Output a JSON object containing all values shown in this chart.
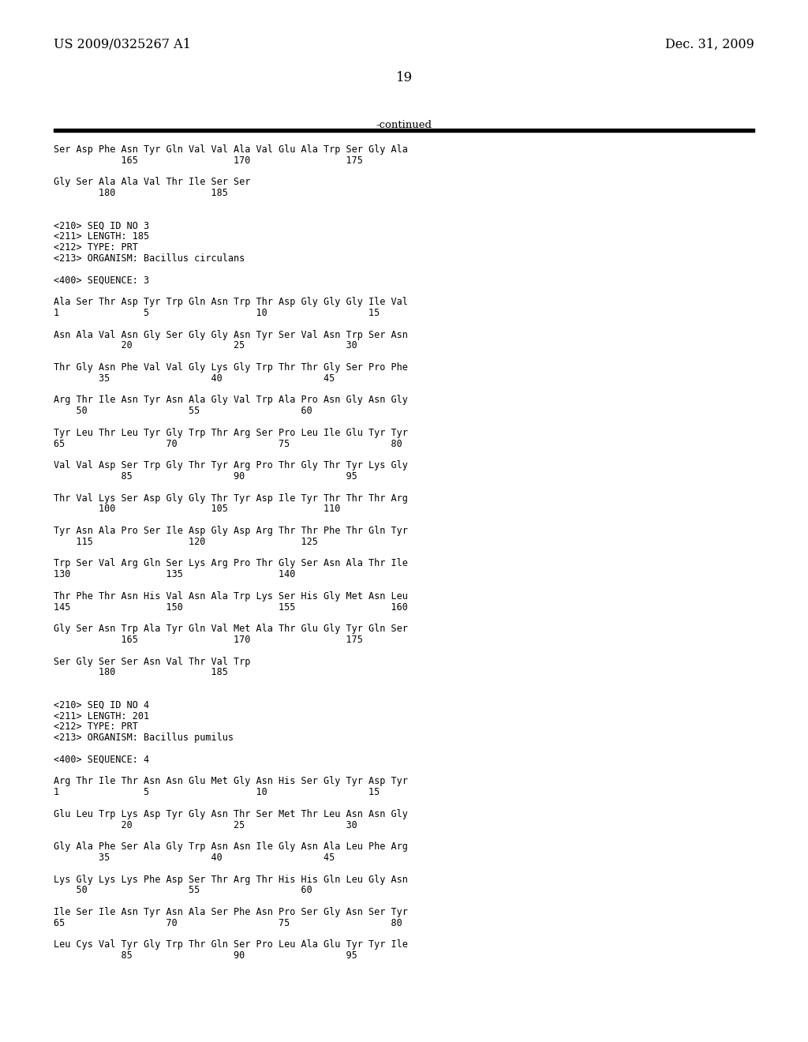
{
  "header_left": "US 2009/0325267 A1",
  "header_right": "Dec. 31, 2009",
  "page_number": "19",
  "continued_label": "-continued",
  "background_color": "#ffffff",
  "text_color": "#000000",
  "font_size_header": 11.5,
  "font_size_body": 8.5,
  "font_size_page": 12,
  "lines": [
    "Ser Asp Phe Asn Tyr Gln Val Val Ala Val Glu Ala Trp Ser Gly Ala",
    "            165                 170                 175",
    "",
    "Gly Ser Ala Ala Val Thr Ile Ser Ser",
    "        180                 185",
    "",
    "",
    "<210> SEQ ID NO 3",
    "<211> LENGTH: 185",
    "<212> TYPE: PRT",
    "<213> ORGANISM: Bacillus circulans",
    "",
    "<400> SEQUENCE: 3",
    "",
    "Ala Ser Thr Asp Tyr Trp Gln Asn Trp Thr Asp Gly Gly Gly Ile Val",
    "1               5                   10                  15",
    "",
    "Asn Ala Val Asn Gly Ser Gly Gly Asn Tyr Ser Val Asn Trp Ser Asn",
    "            20                  25                  30",
    "",
    "Thr Gly Asn Phe Val Val Gly Lys Gly Trp Thr Thr Gly Ser Pro Phe",
    "        35                  40                  45",
    "",
    "Arg Thr Ile Asn Tyr Asn Ala Gly Val Trp Ala Pro Asn Gly Asn Gly",
    "    50                  55                  60",
    "",
    "Tyr Leu Thr Leu Tyr Gly Trp Thr Arg Ser Pro Leu Ile Glu Tyr Tyr",
    "65                  70                  75                  80",
    "",
    "Val Val Asp Ser Trp Gly Thr Tyr Arg Pro Thr Gly Thr Tyr Lys Gly",
    "            85                  90                  95",
    "",
    "Thr Val Lys Ser Asp Gly Gly Thr Tyr Asp Ile Tyr Thr Thr Thr Arg",
    "        100                 105                 110",
    "",
    "Tyr Asn Ala Pro Ser Ile Asp Gly Asp Arg Thr Thr Phe Thr Gln Tyr",
    "    115                 120                 125",
    "",
    "Trp Ser Val Arg Gln Ser Lys Arg Pro Thr Gly Ser Asn Ala Thr Ile",
    "130                 135                 140",
    "",
    "Thr Phe Thr Asn His Val Asn Ala Trp Lys Ser His Gly Met Asn Leu",
    "145                 150                 155                 160",
    "",
    "Gly Ser Asn Trp Ala Tyr Gln Val Met Ala Thr Glu Gly Tyr Gln Ser",
    "            165                 170                 175",
    "",
    "Ser Gly Ser Ser Asn Val Thr Val Trp",
    "        180                 185",
    "",
    "",
    "<210> SEQ ID NO 4",
    "<211> LENGTH: 201",
    "<212> TYPE: PRT",
    "<213> ORGANISM: Bacillus pumilus",
    "",
    "<400> SEQUENCE: 4",
    "",
    "Arg Thr Ile Thr Asn Asn Glu Met Gly Asn His Ser Gly Tyr Asp Tyr",
    "1               5                   10                  15",
    "",
    "Glu Leu Trp Lys Asp Tyr Gly Asn Thr Ser Met Thr Leu Asn Asn Gly",
    "            20                  25                  30",
    "",
    "Gly Ala Phe Ser Ala Gly Trp Asn Asn Ile Gly Asn Ala Leu Phe Arg",
    "        35                  40                  45",
    "",
    "Lys Gly Lys Lys Phe Asp Ser Thr Arg Thr His His Gln Leu Gly Asn",
    "    50                  55                  60",
    "",
    "Ile Ser Ile Asn Tyr Asn Ala Ser Phe Asn Pro Ser Gly Asn Ser Tyr",
    "65                  70                  75                  80",
    "",
    "Leu Cys Val Tyr Gly Trp Thr Gln Ser Pro Leu Ala Glu Tyr Tyr Ile",
    "            85                  90                  95"
  ]
}
